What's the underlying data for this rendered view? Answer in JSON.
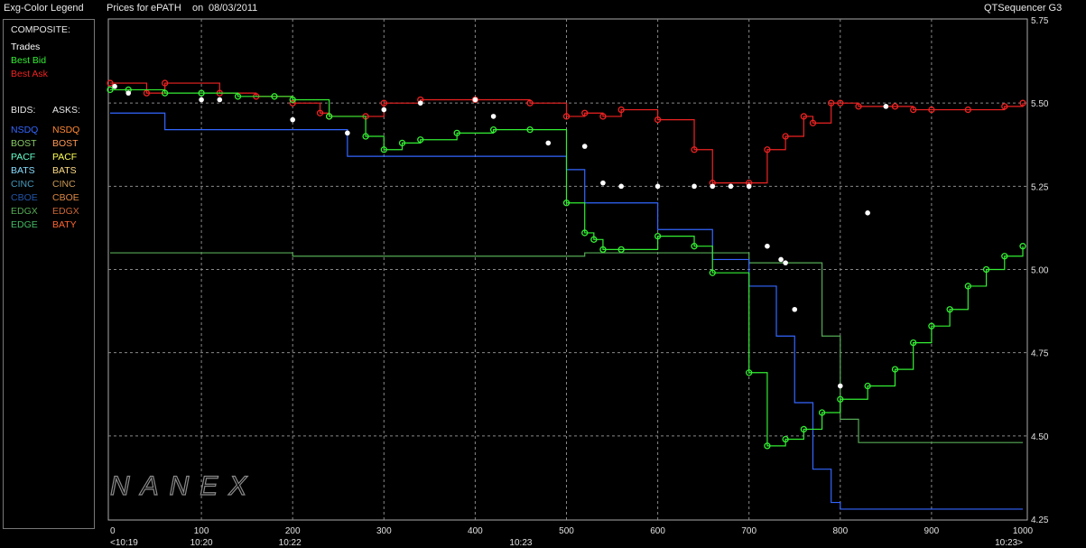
{
  "header": {
    "legend_title": "Exg-Color Legend",
    "prices_for": "Prices for",
    "symbol": "ePATH",
    "on": "on",
    "date": "08/03/2011",
    "app_name": "QTSequencer G3"
  },
  "legend": {
    "composite_label": "COMPOSITE:",
    "composite": [
      {
        "label": "Trades",
        "color": "#ffffff"
      },
      {
        "label": "Best Bid",
        "color": "#33ee33"
      },
      {
        "label": "Best Ask",
        "color": "#ee2222"
      }
    ],
    "bids_label": "BIDS:",
    "asks_label": "ASKS:",
    "bids": [
      {
        "label": "NSDQ",
        "color": "#3366ff"
      },
      {
        "label": "BOST",
        "color": "#88cc66"
      },
      {
        "label": "PACF",
        "color": "#66ffcc"
      },
      {
        "label": "BATS",
        "color": "#88ddff"
      },
      {
        "label": "CINC",
        "color": "#4499bb"
      },
      {
        "label": "CBOE",
        "color": "#2255aa"
      },
      {
        "label": "EDGX",
        "color": "#55aa55"
      },
      {
        "label": "EDGE",
        "color": "#44bb66"
      }
    ],
    "asks": [
      {
        "label": "NSDQ",
        "color": "#ff8833"
      },
      {
        "label": "BOST",
        "color": "#ff9955"
      },
      {
        "label": "PACF",
        "color": "#ffff55"
      },
      {
        "label": "BATS",
        "color": "#ffdd88"
      },
      {
        "label": "CINC",
        "color": "#cc9955"
      },
      {
        "label": "CBOE",
        "color": "#dd8844"
      },
      {
        "label": "EDGX",
        "color": "#cc6633"
      },
      {
        "label": "BATY",
        "color": "#ff6633"
      }
    ]
  },
  "watermark": "NANEX",
  "chart_data": {
    "type": "line",
    "xlim": [
      0,
      1000
    ],
    "ylim": [
      4.25,
      5.75
    ],
    "y_ticks": [
      "5.75",
      "5.50",
      "5.25",
      "5.00",
      "4.75",
      "4.50",
      "4.25"
    ],
    "x_ticks": [
      "0",
      "100",
      "200",
      "300",
      "400",
      "500",
      "600",
      "700",
      "800",
      "900",
      "1000"
    ],
    "time_labels": [
      {
        "x": 0,
        "label": "<10:19"
      },
      {
        "x": 100,
        "label": "10:20"
      },
      {
        "x": 197,
        "label": "10:22"
      },
      {
        "x": 450,
        "label": "10:23"
      },
      {
        "x": 1000,
        "label": "10:23>"
      }
    ],
    "grid": true,
    "series": [
      {
        "name": "Best Ask",
        "color": "#ee2222",
        "x": [
          0,
          40,
          60,
          120,
          160,
          200,
          230,
          240,
          280,
          300,
          340,
          400,
          460,
          500,
          520,
          540,
          560,
          600,
          640,
          660,
          700,
          720,
          740,
          760,
          770,
          790,
          800,
          820,
          860,
          880,
          900,
          940,
          980,
          1000
        ],
        "y": [
          5.56,
          5.53,
          5.56,
          5.53,
          5.52,
          5.5,
          5.47,
          5.46,
          5.46,
          5.5,
          5.51,
          5.51,
          5.5,
          5.46,
          5.47,
          5.46,
          5.48,
          5.45,
          5.36,
          5.26,
          5.26,
          5.36,
          5.4,
          5.46,
          5.44,
          5.5,
          5.5,
          5.49,
          5.49,
          5.48,
          5.48,
          5.48,
          5.49,
          5.5
        ]
      },
      {
        "name": "Best Bid",
        "color": "#33ee33",
        "x": [
          0,
          20,
          60,
          100,
          140,
          180,
          200,
          240,
          280,
          300,
          320,
          340,
          380,
          420,
          460,
          500,
          520,
          530,
          540,
          560,
          600,
          640,
          660,
          700,
          720,
          740,
          760,
          780,
          800,
          830,
          860,
          880,
          900,
          920,
          940,
          960,
          980,
          1000
        ],
        "y": [
          5.54,
          5.54,
          5.53,
          5.53,
          5.52,
          5.52,
          5.51,
          5.46,
          5.4,
          5.36,
          5.38,
          5.39,
          5.41,
          5.42,
          5.42,
          5.2,
          5.11,
          5.09,
          5.06,
          5.06,
          5.1,
          5.07,
          4.99,
          4.69,
          4.47,
          4.49,
          4.52,
          4.57,
          4.61,
          4.65,
          4.7,
          4.78,
          4.83,
          4.88,
          4.95,
          5.0,
          5.04,
          5.07
        ]
      },
      {
        "name": "Trades",
        "color": "#ffffff",
        "x": [
          5,
          20,
          100,
          120,
          200,
          260,
          300,
          340,
          400,
          420,
          480,
          520,
          540,
          560,
          600,
          640,
          660,
          680,
          700,
          720,
          735,
          740,
          750,
          800,
          830,
          850
        ],
        "y": [
          5.55,
          5.53,
          5.51,
          5.51,
          5.45,
          5.41,
          5.48,
          5.5,
          5.51,
          5.46,
          5.38,
          5.37,
          5.26,
          5.25,
          5.25,
          5.25,
          5.25,
          5.25,
          5.25,
          5.07,
          5.03,
          5.02,
          4.88,
          4.65,
          5.17,
          5.49
        ]
      },
      {
        "name": "NSDQ",
        "color": "#3366ff",
        "x": [
          0,
          60,
          100,
          200,
          260,
          300,
          400,
          460,
          500,
          520,
          560,
          600,
          660,
          700,
          730,
          750,
          770,
          790,
          800,
          1000
        ],
        "y": [
          5.47,
          5.42,
          5.42,
          5.42,
          5.34,
          5.34,
          5.34,
          5.34,
          5.3,
          5.2,
          5.2,
          5.12,
          5.03,
          4.95,
          4.8,
          4.6,
          4.4,
          4.3,
          4.28,
          4.28
        ]
      },
      {
        "name": "EDGX",
        "color": "#55aa55",
        "x": [
          0,
          60,
          160,
          200,
          260,
          360,
          400,
          500,
          520,
          600,
          700,
          780,
          800,
          820,
          1000
        ],
        "y": [
          5.05,
          5.05,
          5.05,
          5.04,
          5.04,
          5.04,
          5.04,
          5.04,
          5.05,
          5.05,
          5.02,
          4.8,
          4.55,
          4.48,
          4.48
        ]
      }
    ]
  }
}
